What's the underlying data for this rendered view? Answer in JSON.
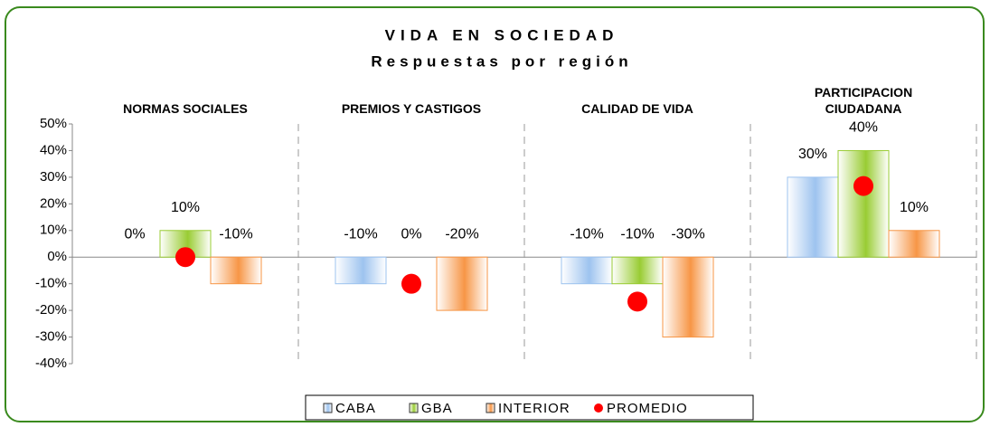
{
  "chart_data": {
    "type": "bar",
    "title": "VIDA EN SOCIEDAD",
    "subtitle": "Respuestas por región",
    "categories": [
      "NORMAS SOCIALES",
      "PREMIOS Y CASTIGOS",
      "CALIDAD DE VIDA",
      "PARTICIPACION CIUDADANA"
    ],
    "series": [
      {
        "name": "CABA",
        "color": "#9dc3ef",
        "values": [
          0,
          -10,
          -10,
          30
        ],
        "value_labels": [
          "0%",
          "-10%",
          "-10%",
          "30%"
        ]
      },
      {
        "name": "GBA",
        "color": "#99cc33",
        "values": [
          10,
          0,
          -10,
          40
        ],
        "value_labels": [
          "10%",
          "0%",
          "-10%",
          "40%"
        ]
      },
      {
        "name": "INTERIOR",
        "color": "#f79646",
        "values": [
          -10,
          -20,
          -30,
          10
        ],
        "value_labels": [
          "-10%",
          "-20%",
          "-30%",
          "10%"
        ]
      },
      {
        "name": "PROMEDIO",
        "type": "scatter",
        "color": "#ff0000",
        "values": [
          0,
          -10,
          -16.7,
          26.7
        ]
      }
    ],
    "ylim": [
      -40,
      50
    ],
    "yticks": [
      {
        "value": -40,
        "label": "-40%"
      },
      {
        "value": -30,
        "label": "-30%"
      },
      {
        "value": -20,
        "label": "-20%"
      },
      {
        "value": -10,
        "label": "-10%"
      },
      {
        "value": 0,
        "label": "0%"
      },
      {
        "value": 10,
        "label": "10%"
      },
      {
        "value": 20,
        "label": "20%"
      },
      {
        "value": 30,
        "label": "30%"
      },
      {
        "value": 40,
        "label": "40%"
      },
      {
        "value": 50,
        "label": "50%"
      }
    ],
    "legend": "bottom"
  }
}
